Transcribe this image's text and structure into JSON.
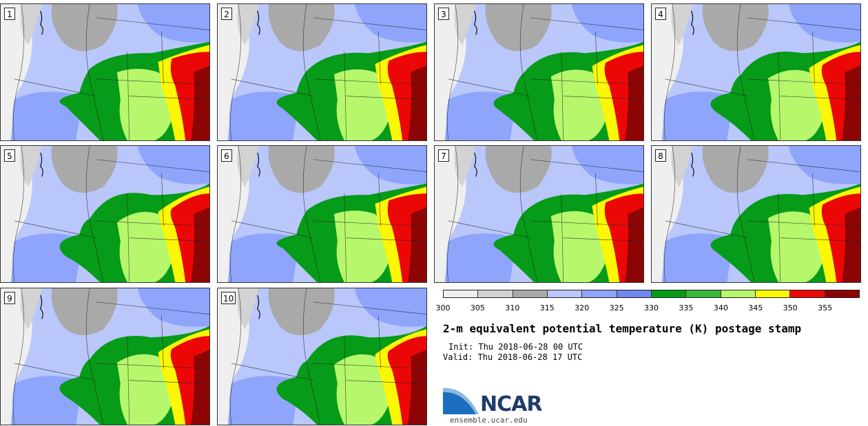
{
  "stamps": [
    {
      "label": "1"
    },
    {
      "label": "2"
    },
    {
      "label": "3"
    },
    {
      "label": "4"
    },
    {
      "label": "5"
    },
    {
      "label": "6"
    },
    {
      "label": "7"
    },
    {
      "label": "8"
    },
    {
      "label": "9"
    },
    {
      "label": "10"
    }
  ],
  "colorbar": {
    "colors": [
      "#efefef",
      "#d3d3d3",
      "#a9a9a9",
      "#b9c7fb",
      "#8ea5fb",
      "#6f86ef",
      "#069b18",
      "#3db43a",
      "#b6f76c",
      "#fbf707",
      "#ec0707",
      "#8d0404"
    ],
    "ticks": [
      "300",
      "305",
      "310",
      "315",
      "320",
      "325",
      "330",
      "335",
      "340",
      "345",
      "350",
      "355"
    ]
  },
  "title": "2-m equivalent potential temperature (K) postage stamp",
  "init_line": "Init: Thu 2018-06-28 00 UTC",
  "valid_line": "Valid: Thu 2018-06-28 17 UTC",
  "logo": {
    "name": "NCAR",
    "url": "ensemble.ucar.edu",
    "icon": "ncar-logo-icon"
  }
}
